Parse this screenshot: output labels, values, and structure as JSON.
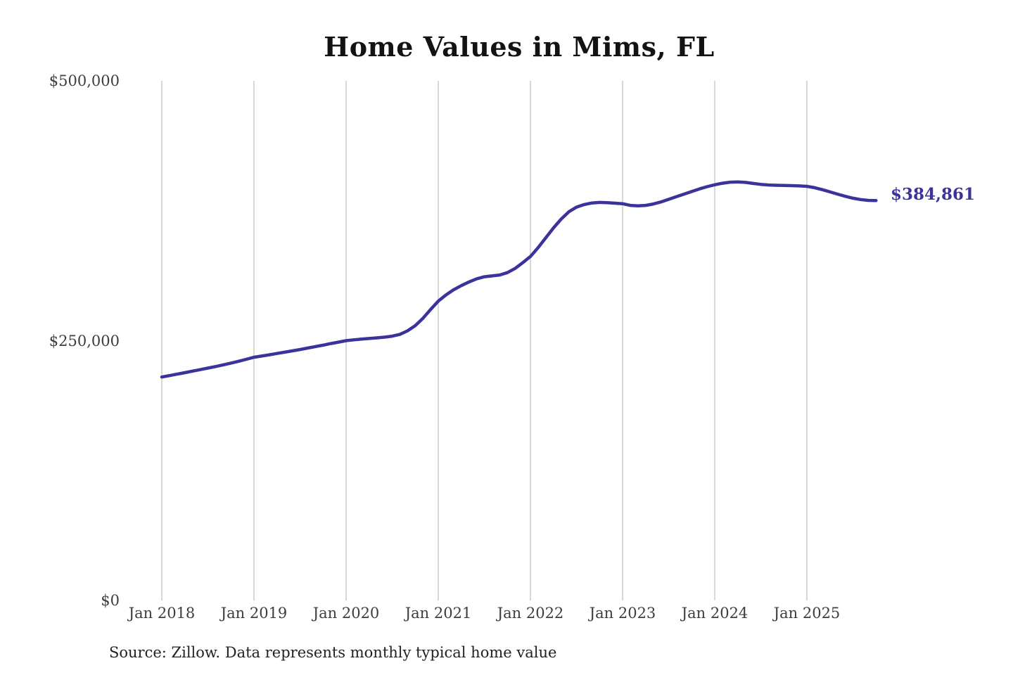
{
  "title": "Home Values in Mims, FL",
  "source_note": "Source: Zillow. Data represents monthly typical home value",
  "colors": {
    "line": "#3b329b",
    "grid": "#cccccc",
    "title_text": "#131313",
    "axis_text": "#3d3d3d",
    "source_text": "#222222",
    "background": "#ffffff"
  },
  "chart_data": {
    "type": "line",
    "title": "Home Values in Mims, FL",
    "xlabel": "",
    "ylabel": "",
    "legend": "none",
    "grid": "vertical-only",
    "ylim": [
      0,
      500000
    ],
    "y_tick_values": [
      0,
      250000,
      500000
    ],
    "y_tick_labels": [
      "$0",
      "$250,000",
      "$500,000"
    ],
    "x_tick_labels": [
      "Jan 2018",
      "Jan 2019",
      "Jan 2020",
      "Jan 2021",
      "Jan 2022",
      "Jan 2023",
      "Jan 2024",
      "Jan 2025"
    ],
    "x_start_month": "2018-01",
    "x_end_month": "2025-10",
    "final_value": 384861,
    "final_value_label": "$384,861",
    "series": [
      {
        "name": "Monthly typical home value (USD)",
        "monthly_values": [
          215000,
          216400,
          217800,
          219200,
          220700,
          222100,
          223600,
          225100,
          226700,
          228400,
          230200,
          232100,
          234000,
          235200,
          236400,
          237700,
          238900,
          240200,
          241500,
          242900,
          244300,
          245700,
          247200,
          248600,
          250000,
          250800,
          251500,
          252100,
          252700,
          253400,
          254300,
          256000,
          259500,
          264500,
          271500,
          280000,
          288000,
          294000,
          299000,
          303000,
          306500,
          309500,
          311500,
          312300,
          313200,
          315500,
          319500,
          325000,
          331000,
          339500,
          349000,
          358500,
          367000,
          374000,
          378500,
          381000,
          382500,
          383000,
          382800,
          382300,
          381800,
          380200,
          379700,
          380200,
          381500,
          383500,
          386000,
          388500,
          391000,
          393500,
          396000,
          398200,
          400000,
          401500,
          402500,
          402800,
          402300,
          401300,
          400400,
          399800,
          399500,
          399400,
          399200,
          398900,
          398500,
          397200,
          395300,
          393200,
          391000,
          388900,
          387100,
          385800,
          385000,
          384861
        ]
      }
    ]
  }
}
